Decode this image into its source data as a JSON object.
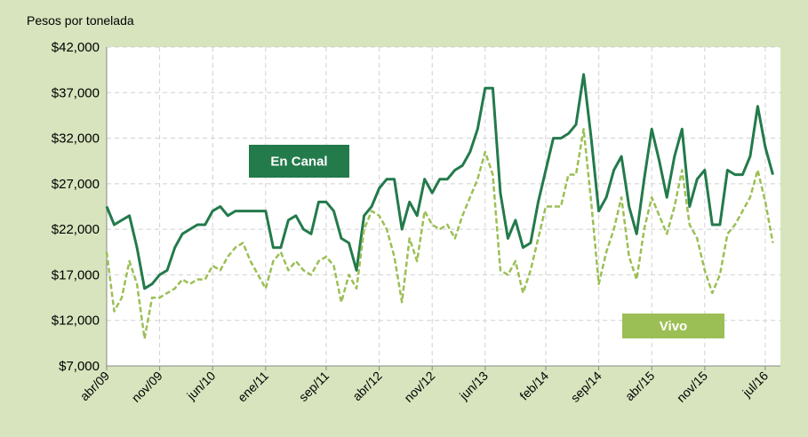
{
  "chart_data": {
    "type": "line",
    "y_axis_label": "Pesos por tonelada",
    "categories": [
      "abr/09",
      null,
      null,
      null,
      null,
      null,
      null,
      "nov/09",
      null,
      null,
      null,
      null,
      null,
      null,
      "jun/10",
      null,
      null,
      null,
      null,
      null,
      null,
      "ene/11",
      null,
      null,
      null,
      null,
      null,
      null,
      null,
      "sep/11",
      null,
      null,
      null,
      null,
      null,
      null,
      "abr/12",
      null,
      null,
      null,
      null,
      null,
      null,
      "nov/12",
      null,
      null,
      null,
      null,
      null,
      null,
      "jun/13",
      null,
      null,
      null,
      null,
      null,
      null,
      null,
      "feb/14",
      null,
      null,
      null,
      null,
      null,
      null,
      "sep/14",
      null,
      null,
      null,
      null,
      null,
      null,
      "abr/15",
      null,
      null,
      null,
      null,
      null,
      null,
      "nov/15",
      null,
      null,
      null,
      null,
      null,
      null,
      null,
      "jul/16",
      null
    ],
    "series": [
      {
        "name": "En Canal",
        "color": "#237a4b",
        "dashed": false,
        "values": [
          24500,
          22500,
          23000,
          23500,
          20000,
          15500,
          16000,
          17000,
          17500,
          20000,
          21500,
          22000,
          22500,
          22500,
          24000,
          24500,
          23500,
          24000,
          24000,
          24000,
          24000,
          24000,
          20000,
          20000,
          23000,
          23500,
          22000,
          21500,
          25000,
          25000,
          24000,
          21000,
          20500,
          17500,
          23500,
          24500,
          26500,
          27500,
          27500,
          22000,
          25000,
          23500,
          27500,
          26000,
          27500,
          27500,
          28500,
          29000,
          30500,
          33000,
          37500,
          37500,
          26000,
          21000,
          23000,
          20000,
          20500,
          25000,
          28500,
          32000,
          32000,
          32500,
          33500,
          39000,
          32000,
          24000,
          25500,
          28500,
          30000,
          24500,
          21500,
          27500,
          33000,
          29500,
          25500,
          30000,
          33000,
          24500,
          27500,
          28500,
          22500,
          22500,
          28500,
          28000,
          28000,
          30000,
          35500,
          31000,
          28000
        ]
      },
      {
        "name": "Vivo",
        "color": "#9cbf55",
        "dashed": true,
        "values": [
          19500,
          13000,
          14500,
          18500,
          16000,
          10000,
          14500,
          14500,
          15000,
          15500,
          16500,
          16000,
          16500,
          16500,
          18000,
          17500,
          19000,
          20000,
          20500,
          18500,
          17000,
          15500,
          18500,
          19500,
          17500,
          18500,
          17500,
          17000,
          18500,
          19000,
          18000,
          14000,
          17000,
          15500,
          22000,
          24000,
          23500,
          22000,
          19000,
          14000,
          21000,
          18500,
          24000,
          22500,
          22000,
          22500,
          21000,
          23500,
          25500,
          27500,
          30500,
          28000,
          17500,
          17000,
          18500,
          15000,
          17500,
          21000,
          24500,
          24500,
          24500,
          28000,
          28000,
          33000,
          25000,
          16000,
          19500,
          22000,
          25500,
          19000,
          16500,
          22000,
          25500,
          23500,
          21500,
          24500,
          28500,
          22500,
          21000,
          17500,
          15000,
          17000,
          21500,
          22500,
          24000,
          25500,
          28500,
          25000,
          20500
        ]
      }
    ],
    "ylim": [
      7000,
      42000
    ],
    "yticks": [
      {
        "value": 7000,
        "label": "$7,000"
      },
      {
        "value": 12000,
        "label": "$12,000"
      },
      {
        "value": 17000,
        "label": "$17,000"
      },
      {
        "value": 22000,
        "label": "$22,000"
      },
      {
        "value": 27000,
        "label": "$27,000"
      },
      {
        "value": 32000,
        "label": "$32,000"
      },
      {
        "value": 37000,
        "label": "$37,000"
      },
      {
        "value": 42000,
        "label": "$42,000"
      }
    ],
    "grid": true
  }
}
